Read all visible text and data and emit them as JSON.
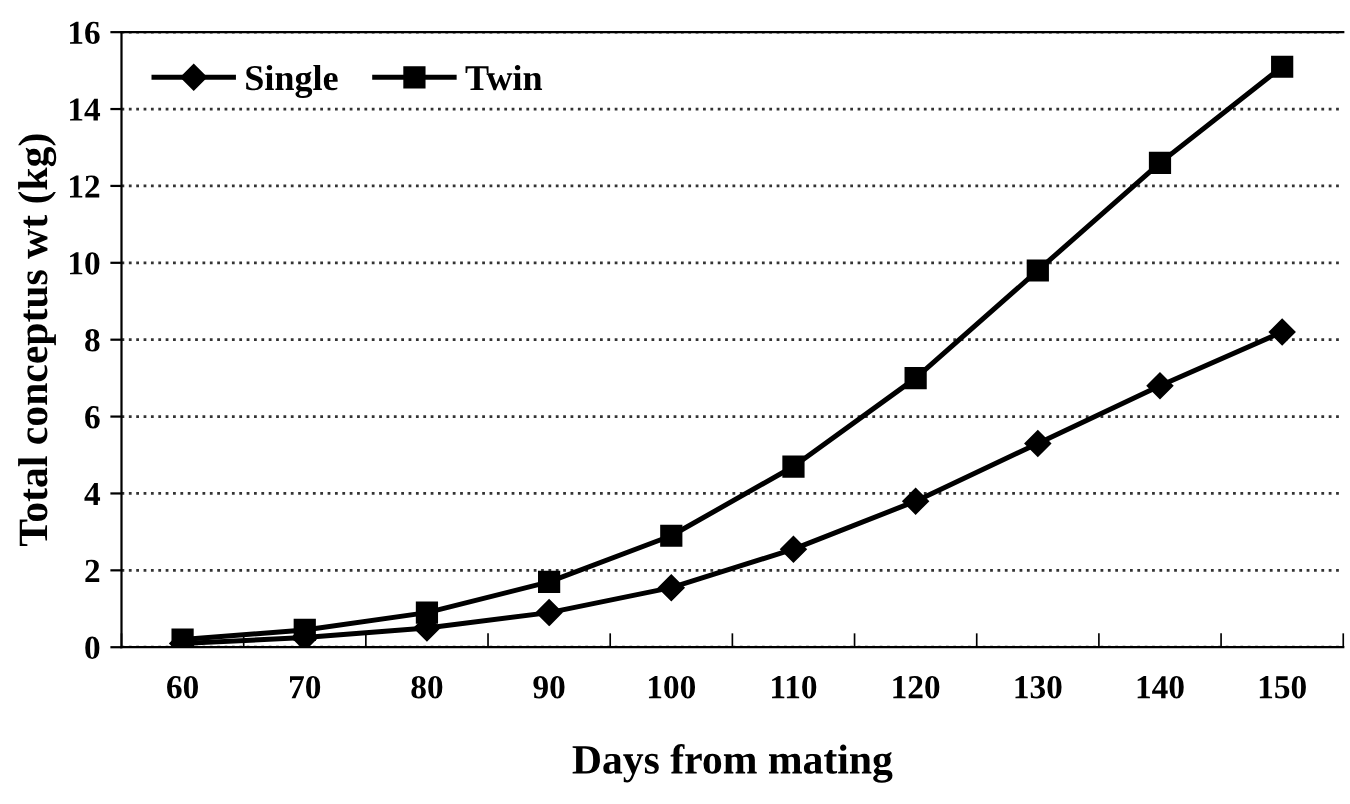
{
  "chart_data": {
    "type": "line",
    "xlabel": "Days from mating",
    "ylabel": "Total conceptus wt (kg)",
    "categories": [
      "60",
      "70",
      "80",
      "90",
      "100",
      "110",
      "120",
      "130",
      "140",
      "150"
    ],
    "series": [
      {
        "name": "Single",
        "color": "#000000",
        "marker": "diamond",
        "values": [
          0.1,
          0.25,
          0.5,
          0.9,
          1.55,
          2.55,
          3.8,
          5.3,
          6.8,
          8.2
        ]
      },
      {
        "name": "Twin",
        "color": "#000000",
        "marker": "square",
        "values": [
          0.2,
          0.45,
          0.9,
          1.7,
          2.9,
          4.7,
          7.0,
          9.8,
          12.6,
          15.1
        ]
      }
    ],
    "ylim": [
      0,
      16
    ],
    "yticks": [
      0,
      2,
      4,
      6,
      8,
      10,
      12,
      14,
      16
    ],
    "grid": "y",
    "legend": "top left",
    "line_style": "solid"
  }
}
